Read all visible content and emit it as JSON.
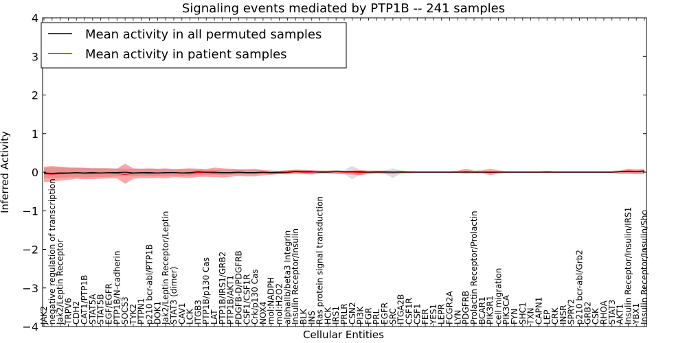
{
  "chart_data": {
    "type": "line",
    "title": "Signaling events mediated by PTP1B -- 241 samples",
    "xlabel": "Cellular Entities",
    "ylabel": "Inferred Activity",
    "ylim": [
      -4,
      4
    ],
    "yticks": [
      "4",
      "3",
      "2",
      "1",
      "0",
      "−1",
      "−2",
      "−3",
      "−4"
    ],
    "legend": {
      "placement": "top-left",
      "entries": [
        {
          "label": "Mean activity in all permuted samples",
          "color": "#000000"
        },
        {
          "label": "Mean activity in patient samples",
          "color": "#ff0000"
        }
      ]
    },
    "categories": [
      "JAK2",
      "negative regulation of transcription",
      "Jak2/Leptin Receptor",
      "TRPV6",
      "CDH2",
      "CAT1/PTP1B",
      "STAT5A",
      "STAT5B",
      "EGF/EGFR",
      "PTP1B/N-cadherin",
      "SOCS3",
      "TYK2",
      "PTPN1",
      "p210 bcr-abl/PTP1B",
      "DOK1",
      "Jak2/Leptin Receptor/Leptin",
      "STAT3 (dimer)",
      "CAV1",
      "LCK",
      "ITGB3",
      "PTP1B/p130 Cas",
      "LAT",
      "PTP1B/IRS1/GRB2",
      "PTP1B/AKT1",
      "PDGFB-D/PDGFRB",
      "CSF1/CSF1R",
      "Crk/p130 Cas",
      "NOX4",
      "mol:NADPH",
      "mol:H2O2",
      "alphaIIb/beta3 Integrin",
      "Insulin Receptor/Insulin",
      "BLK",
      "INS",
      "Ras protein signal transduction",
      "HCK",
      "IRS1",
      "PRLR",
      "CSN2",
      "PI3K",
      "FGR",
      "PRL",
      "EGFR",
      "SRC",
      "ITGA2B",
      "CSF1R",
      "CSF1",
      "FER",
      "YES1",
      "LEPR",
      "FCGR2A",
      "LYN",
      "PDGFRB",
      "Prolactin Receptor/Prolactin",
      "BCAR1",
      "PIK3R1",
      "cell migration",
      "PIK3CA",
      "FYN",
      "SHC1",
      "TXN",
      "CAPN1",
      "LEP",
      "CRK",
      "INSR",
      "SPRY2",
      "p210 bcr-abl/Grb2",
      "GRB2",
      "CSK",
      "RHOA",
      "STAT3",
      "AKT1",
      "Insulin Receptor/Insulin/IRS1",
      "YBX1",
      "Insulin Receptor/Insulin/Shc"
    ],
    "series": [
      {
        "name": "Mean activity in all permuted samples",
        "color": "#000000",
        "values": [
          -0.02,
          -0.03,
          -0.02,
          -0.02,
          -0.01,
          -0.02,
          -0.01,
          -0.02,
          -0.01,
          -0.01,
          0.0,
          -0.02,
          -0.01,
          -0.01,
          -0.02,
          -0.01,
          -0.01,
          -0.02,
          -0.01,
          0.01,
          0.0,
          0.0,
          -0.01,
          -0.01,
          0.0,
          -0.01,
          -0.01,
          0.0,
          -0.01,
          0.0,
          0.0,
          0.02,
          0.01,
          0.01,
          0.0,
          0.0,
          0.01,
          0.01,
          0.01,
          0.01,
          0.0,
          0.0,
          0.0,
          0.0,
          0.0,
          0.0,
          0.0,
          0.0,
          0.0,
          0.0,
          0.0,
          0.0,
          0.0,
          0.0,
          0.0,
          0.0,
          0.0,
          0.0,
          0.0,
          0.0,
          0.0,
          0.0,
          0.0,
          0.0,
          0.0,
          0.0,
          0.0,
          0.0,
          0.0,
          0.0,
          0.0,
          0.01,
          0.02,
          0.02,
          0.03
        ],
        "lower": [
          -0.15,
          -0.16,
          -0.15,
          -0.14,
          -0.13,
          -0.14,
          -0.13,
          -0.13,
          -0.12,
          -0.11,
          -0.1,
          -0.11,
          -0.1,
          -0.1,
          -0.1,
          -0.1,
          -0.09,
          -0.1,
          -0.09,
          -0.08,
          -0.08,
          -0.07,
          -0.08,
          -0.07,
          -0.06,
          -0.06,
          -0.06,
          -0.05,
          -0.05,
          -0.04,
          -0.04,
          -0.04,
          -0.05,
          -0.05,
          -0.03,
          -0.03,
          -0.04,
          -0.05,
          -0.18,
          -0.06,
          -0.04,
          -0.03,
          -0.04,
          -0.15,
          -0.03,
          -0.02,
          -0.02,
          -0.02,
          -0.02,
          -0.02,
          -0.02,
          -0.02,
          -0.02,
          -0.02,
          -0.02,
          -0.02,
          -0.02,
          -0.02,
          -0.02,
          -0.02,
          -0.02,
          -0.02,
          -0.02,
          -0.02,
          -0.02,
          -0.02,
          -0.02,
          -0.02,
          -0.02,
          -0.02,
          -0.03,
          -0.04,
          -0.05,
          -0.05,
          -0.05
        ],
        "upper": [
          0.12,
          0.13,
          0.13,
          0.12,
          0.11,
          0.12,
          0.11,
          0.11,
          0.1,
          0.1,
          0.09,
          0.09,
          0.09,
          0.09,
          0.08,
          0.08,
          0.08,
          0.08,
          0.08,
          0.08,
          0.07,
          0.07,
          0.07,
          0.07,
          0.06,
          0.06,
          0.06,
          0.05,
          0.05,
          0.04,
          0.05,
          0.06,
          0.06,
          0.05,
          0.04,
          0.04,
          0.05,
          0.05,
          0.16,
          0.06,
          0.04,
          0.04,
          0.04,
          0.1,
          0.04,
          0.03,
          0.03,
          0.03,
          0.03,
          0.03,
          0.03,
          0.03,
          0.03,
          0.03,
          0.03,
          0.03,
          0.03,
          0.03,
          0.03,
          0.03,
          0.03,
          0.03,
          0.03,
          0.03,
          0.03,
          0.03,
          0.03,
          0.03,
          0.03,
          0.03,
          0.04,
          0.05,
          0.06,
          0.06,
          0.07
        ]
      },
      {
        "name": "Mean activity in patient samples",
        "color": "#ff0000",
        "values": [
          -0.04,
          -0.05,
          -0.04,
          -0.03,
          -0.02,
          -0.03,
          -0.03,
          -0.02,
          -0.02,
          -0.03,
          -0.06,
          -0.03,
          -0.02,
          -0.03,
          -0.02,
          -0.02,
          -0.01,
          -0.02,
          -0.03,
          -0.01,
          -0.01,
          -0.02,
          -0.02,
          -0.02,
          -0.01,
          -0.02,
          -0.02,
          -0.01,
          -0.02,
          -0.02,
          -0.01,
          0.01,
          0.0,
          0.0,
          0.01,
          0.01,
          0.01,
          0.0,
          0.0,
          -0.01,
          0.0,
          0.01,
          0.01,
          0.0,
          0.01,
          0.0,
          0.0,
          0.0,
          0.0,
          0.0,
          0.0,
          0.0,
          0.01,
          0.0,
          0.0,
          -0.01,
          0.0,
          0.0,
          0.0,
          0.0,
          0.0,
          0.0,
          0.01,
          0.0,
          0.0,
          0.0,
          0.0,
          0.0,
          0.0,
          0.0,
          0.0,
          0.01,
          0.03,
          0.02,
          0.03
        ],
        "lower": [
          -0.26,
          -0.24,
          -0.22,
          -0.2,
          -0.17,
          -0.18,
          -0.18,
          -0.17,
          -0.16,
          -0.16,
          -0.3,
          -0.17,
          -0.15,
          -0.16,
          -0.15,
          -0.16,
          -0.13,
          -0.14,
          -0.15,
          -0.12,
          -0.12,
          -0.13,
          -0.14,
          -0.12,
          -0.1,
          -0.11,
          -0.11,
          -0.08,
          -0.07,
          -0.05,
          -0.06,
          -0.04,
          -0.05,
          -0.06,
          -0.03,
          -0.03,
          -0.04,
          -0.05,
          -0.06,
          -0.08,
          -0.05,
          -0.03,
          -0.04,
          -0.05,
          -0.03,
          -0.03,
          -0.02,
          -0.02,
          -0.02,
          -0.02,
          -0.02,
          -0.02,
          -0.04,
          -0.03,
          -0.03,
          -0.08,
          -0.04,
          -0.02,
          -0.02,
          -0.02,
          -0.02,
          -0.02,
          -0.02,
          -0.02,
          -0.02,
          -0.02,
          -0.02,
          -0.02,
          -0.02,
          -0.02,
          -0.02,
          -0.04,
          -0.03,
          -0.05,
          -0.04
        ],
        "upper": [
          0.14,
          0.16,
          0.14,
          0.12,
          0.12,
          0.11,
          0.1,
          0.1,
          0.1,
          0.09,
          0.22,
          0.1,
          0.09,
          0.1,
          0.09,
          0.1,
          0.08,
          0.09,
          0.1,
          0.09,
          0.08,
          0.12,
          0.1,
          0.09,
          0.08,
          0.08,
          0.09,
          0.05,
          0.04,
          0.03,
          0.05,
          0.07,
          0.06,
          0.05,
          0.04,
          0.04,
          0.05,
          0.03,
          0.04,
          0.05,
          0.04,
          0.04,
          0.04,
          0.03,
          0.04,
          0.03,
          0.02,
          0.02,
          0.02,
          0.02,
          0.02,
          0.04,
          0.09,
          0.04,
          0.05,
          0.09,
          0.05,
          0.02,
          0.02,
          0.02,
          0.02,
          0.02,
          0.03,
          0.02,
          0.02,
          0.02,
          0.02,
          0.02,
          0.02,
          0.02,
          0.02,
          0.04,
          0.09,
          0.07,
          0.08
        ]
      }
    ]
  }
}
